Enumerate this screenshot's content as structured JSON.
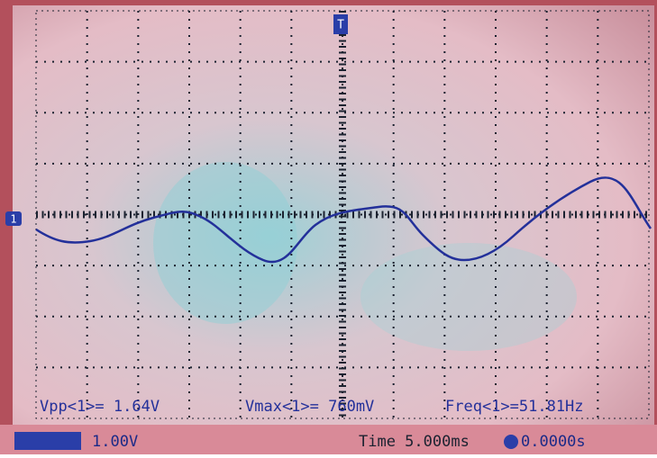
{
  "screen": {
    "markers": {
      "trigger": "T",
      "channel": "1"
    },
    "measurements": [
      "Vpp<1>= 1.64V",
      "Vmax<1>= 760mV",
      "Freq<1>=51.81Hz"
    ],
    "status": {
      "volts_per_div": "1.00V",
      "timebase": "Time 5.000ms",
      "trigger_offset": "0.0000s"
    }
  }
}
